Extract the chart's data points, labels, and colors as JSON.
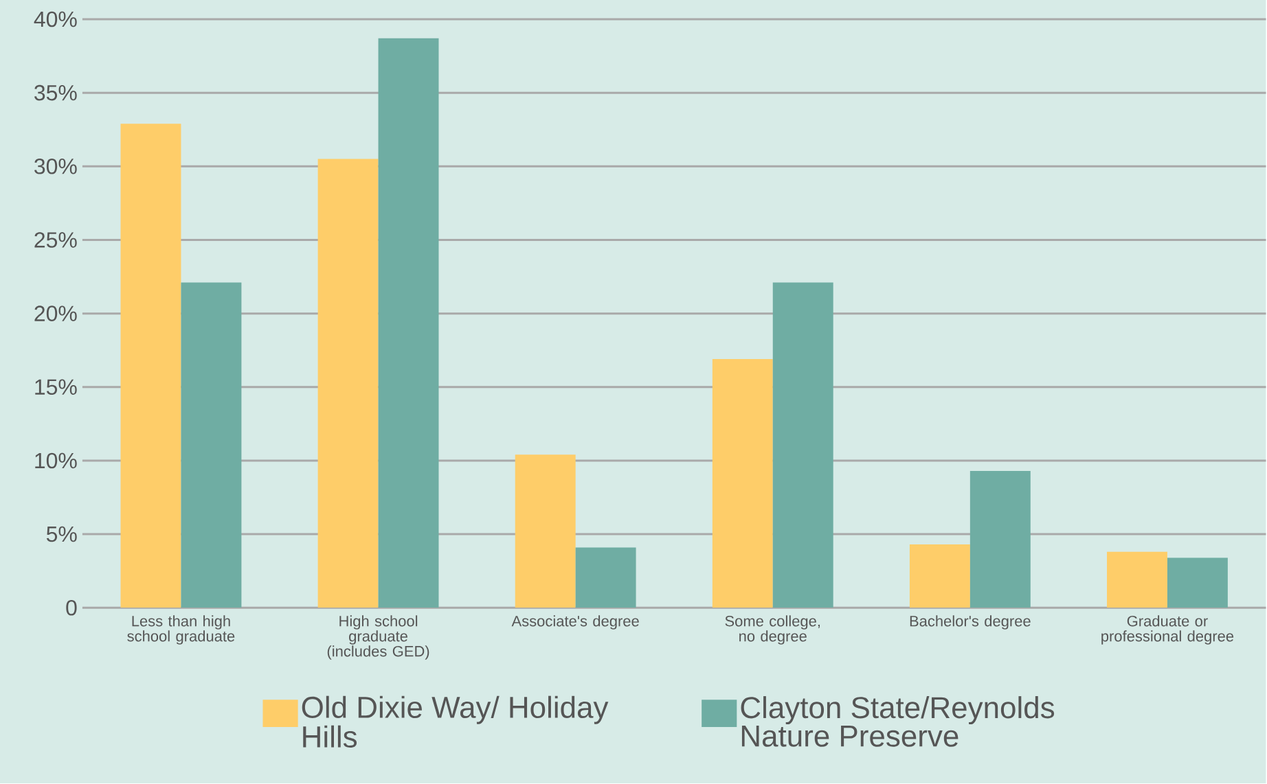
{
  "chart_data": {
    "type": "bar",
    "categories": [
      "Less than high school graduate",
      "High school graduate (includes GED)",
      "Associate's degree",
      "Some college, no degree",
      "Bachelor's degree",
      "Graduate or professional degree"
    ],
    "series": [
      {
        "name": "Old Dixie Way/ Holiday Hills",
        "color": "#fecd69",
        "values": [
          32.9,
          30.5,
          10.4,
          16.9,
          4.3,
          3.8
        ]
      },
      {
        "name": "Clayton State/Reynolds Nature Preserve",
        "color": "#6fada3",
        "values": [
          22.1,
          38.7,
          4.1,
          22.1,
          9.3,
          3.4
        ]
      }
    ],
    "ylim": [
      0,
      40
    ],
    "yticks": [
      0,
      {
        "value": 5,
        "label": "5%"
      },
      {
        "value": 10,
        "label": "10%"
      },
      {
        "value": 15,
        "label": "15%"
      },
      {
        "value": 20,
        "label": "20%"
      },
      {
        "value": 25,
        "label": "25%"
      },
      {
        "value": 30,
        "label": "30%"
      },
      {
        "value": 35,
        "label": "35%"
      },
      {
        "value": 40,
        "label": "40%"
      }
    ],
    "grid": "y",
    "legend": "bottom"
  }
}
